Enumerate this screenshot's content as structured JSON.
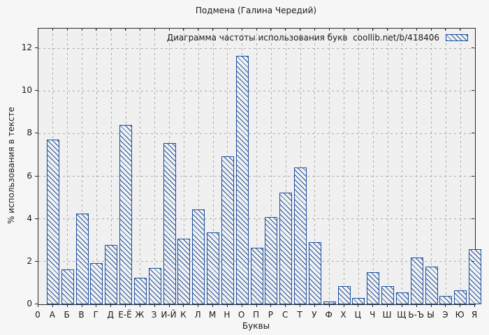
{
  "title": "Подмена (Галина Чередий)",
  "legend": {
    "label": "Диаграмма частоты использования букв  coollib.net/b/418406"
  },
  "axes": {
    "x_title": "Буквы",
    "y_title": "% использования в тексте",
    "x_origin_label": "0"
  },
  "colors": {
    "bar_blue": "#1d4f9e",
    "plot_background": "#f0f0f0",
    "figure_background": "#f6f6f6",
    "grid": "#ababab",
    "axis": "#2a2a2a"
  },
  "chart_data": {
    "type": "bar",
    "title": "Подмена (Галина Чередий)",
    "legend_label": "Диаграмма частоты использования букв  coollib.net/b/418406",
    "xlabel": "Буквы",
    "ylabel": "% использования в тексте",
    "categories": [
      "А",
      "Б",
      "В",
      "Г",
      "Д",
      "Е-Ё",
      "Ж",
      "З",
      "И-Й",
      "К",
      "Л",
      "М",
      "Н",
      "О",
      "П",
      "Р",
      "С",
      "Т",
      "У",
      "Ф",
      "Х",
      "Ц",
      "Ч",
      "Ш",
      "Щ",
      "Ь-Ъ",
      "Ы",
      "Э",
      "Ю",
      "Я"
    ],
    "values": [
      7.71,
      1.65,
      4.26,
      1.94,
      2.78,
      8.4,
      1.23,
      1.71,
      7.57,
      3.08,
      4.44,
      3.38,
      6.93,
      11.65,
      2.66,
      4.1,
      5.22,
      6.4,
      2.9,
      0.13,
      0.86,
      0.3,
      1.5,
      0.84,
      0.55,
      2.2,
      1.78,
      0.38,
      0.67,
      2.58
    ],
    "x_origin_label": "0",
    "yticks": [
      0,
      2,
      4,
      6,
      8,
      10,
      12
    ],
    "ylim": [
      0,
      12.9
    ],
    "grid": true,
    "legend_position": "top-right",
    "hatch": "backslash",
    "bar_color": "#1d4f9e"
  }
}
